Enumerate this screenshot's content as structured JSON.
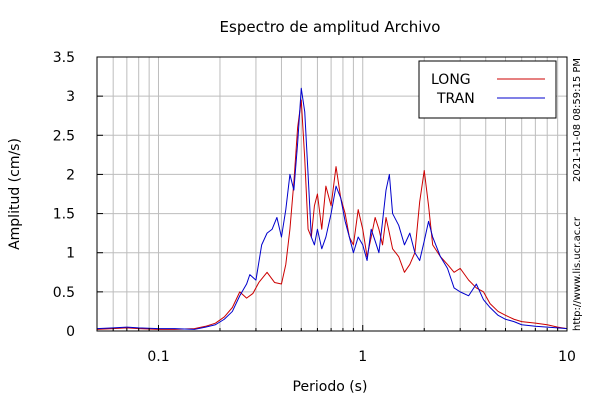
{
  "chart_data": {
    "type": "line",
    "title": "Espectro de amplitud Archivo",
    "xlabel": "Periodo (s)",
    "ylabel": "Amplitud (cm/s)",
    "x_scale": "log",
    "xlim": [
      0.05,
      10
    ],
    "ylim": [
      0,
      3.5
    ],
    "x_ticks": [
      {
        "value": 0.1,
        "label": "0.1"
      },
      {
        "value": 1,
        "label": "1"
      },
      {
        "value": 10,
        "label": "10"
      }
    ],
    "y_ticks": [
      {
        "value": 0,
        "label": "0"
      },
      {
        "value": 0.5,
        "label": "0.5"
      },
      {
        "value": 1,
        "label": "1"
      },
      {
        "value": 1.5,
        "label": "1.5"
      },
      {
        "value": 2,
        "label": "2"
      },
      {
        "value": 2.5,
        "label": "2.5"
      },
      {
        "value": 3,
        "label": "3"
      },
      {
        "value": 3.5,
        "label": "3.5"
      }
    ],
    "grid": true,
    "legend_position": "top-right",
    "timestamp": "2021-11-08 08:59:15 PM",
    "url": "http://www.lis.ucr.ac.cr",
    "series": [
      {
        "name": "LONG",
        "color": "#cc0000",
        "points": [
          [
            0.05,
            0.02
          ],
          [
            0.06,
            0.03
          ],
          [
            0.07,
            0.04
          ],
          [
            0.08,
            0.03
          ],
          [
            0.1,
            0.02
          ],
          [
            0.12,
            0.02
          ],
          [
            0.15,
            0.03
          ],
          [
            0.17,
            0.06
          ],
          [
            0.19,
            0.1
          ],
          [
            0.21,
            0.18
          ],
          [
            0.23,
            0.3
          ],
          [
            0.25,
            0.5
          ],
          [
            0.27,
            0.42
          ],
          [
            0.29,
            0.48
          ],
          [
            0.31,
            0.62
          ],
          [
            0.34,
            0.75
          ],
          [
            0.37,
            0.62
          ],
          [
            0.4,
            0.6
          ],
          [
            0.42,
            0.85
          ],
          [
            0.44,
            1.3
          ],
          [
            0.46,
            1.9
          ],
          [
            0.48,
            2.6
          ],
          [
            0.5,
            2.95
          ],
          [
            0.52,
            2.2
          ],
          [
            0.54,
            1.3
          ],
          [
            0.56,
            1.2
          ],
          [
            0.58,
            1.6
          ],
          [
            0.6,
            1.75
          ],
          [
            0.63,
            1.3
          ],
          [
            0.66,
            1.85
          ],
          [
            0.7,
            1.6
          ],
          [
            0.74,
            2.1
          ],
          [
            0.78,
            1.7
          ],
          [
            0.82,
            1.5
          ],
          [
            0.86,
            1.2
          ],
          [
            0.9,
            1.1
          ],
          [
            0.95,
            1.55
          ],
          [
            1.0,
            1.3
          ],
          [
            1.05,
            0.95
          ],
          [
            1.1,
            1.2
          ],
          [
            1.15,
            1.45
          ],
          [
            1.2,
            1.3
          ],
          [
            1.25,
            1.1
          ],
          [
            1.3,
            1.45
          ],
          [
            1.35,
            1.25
          ],
          [
            1.4,
            1.05
          ],
          [
            1.5,
            0.95
          ],
          [
            1.6,
            0.75
          ],
          [
            1.7,
            0.85
          ],
          [
            1.8,
            1.0
          ],
          [
            1.9,
            1.65
          ],
          [
            2.0,
            2.05
          ],
          [
            2.1,
            1.6
          ],
          [
            2.2,
            1.1
          ],
          [
            2.4,
            0.95
          ],
          [
            2.6,
            0.85
          ],
          [
            2.8,
            0.75
          ],
          [
            3.0,
            0.8
          ],
          [
            3.3,
            0.65
          ],
          [
            3.6,
            0.55
          ],
          [
            3.9,
            0.5
          ],
          [
            4.2,
            0.35
          ],
          [
            4.6,
            0.25
          ],
          [
            5.0,
            0.2
          ],
          [
            5.5,
            0.15
          ],
          [
            6.0,
            0.12
          ],
          [
            7.0,
            0.1
          ],
          [
            8.0,
            0.08
          ],
          [
            9.0,
            0.05
          ],
          [
            10.0,
            0.03
          ]
        ]
      },
      {
        "name": "TRAN",
        "color": "#0000cc",
        "points": [
          [
            0.05,
            0.03
          ],
          [
            0.06,
            0.04
          ],
          [
            0.07,
            0.05
          ],
          [
            0.08,
            0.04
          ],
          [
            0.1,
            0.03
          ],
          [
            0.12,
            0.03
          ],
          [
            0.15,
            0.02
          ],
          [
            0.17,
            0.05
          ],
          [
            0.19,
            0.08
          ],
          [
            0.21,
            0.15
          ],
          [
            0.23,
            0.25
          ],
          [
            0.25,
            0.45
          ],
          [
            0.27,
            0.6
          ],
          [
            0.28,
            0.72
          ],
          [
            0.3,
            0.65
          ],
          [
            0.32,
            1.1
          ],
          [
            0.34,
            1.25
          ],
          [
            0.36,
            1.3
          ],
          [
            0.38,
            1.45
          ],
          [
            0.4,
            1.2
          ],
          [
            0.42,
            1.55
          ],
          [
            0.44,
            2.0
          ],
          [
            0.46,
            1.8
          ],
          [
            0.48,
            2.4
          ],
          [
            0.5,
            3.1
          ],
          [
            0.52,
            2.8
          ],
          [
            0.54,
            2.0
          ],
          [
            0.56,
            1.2
          ],
          [
            0.58,
            1.1
          ],
          [
            0.6,
            1.3
          ],
          [
            0.63,
            1.05
          ],
          [
            0.66,
            1.2
          ],
          [
            0.7,
            1.5
          ],
          [
            0.74,
            1.85
          ],
          [
            0.78,
            1.7
          ],
          [
            0.82,
            1.4
          ],
          [
            0.86,
            1.2
          ],
          [
            0.9,
            1.0
          ],
          [
            0.95,
            1.2
          ],
          [
            1.0,
            1.1
          ],
          [
            1.05,
            0.9
          ],
          [
            1.1,
            1.3
          ],
          [
            1.15,
            1.15
          ],
          [
            1.2,
            1.0
          ],
          [
            1.25,
            1.4
          ],
          [
            1.3,
            1.8
          ],
          [
            1.35,
            2.0
          ],
          [
            1.4,
            1.5
          ],
          [
            1.5,
            1.35
          ],
          [
            1.6,
            1.1
          ],
          [
            1.7,
            1.25
          ],
          [
            1.8,
            1.0
          ],
          [
            1.9,
            0.9
          ],
          [
            2.0,
            1.15
          ],
          [
            2.1,
            1.4
          ],
          [
            2.2,
            1.2
          ],
          [
            2.4,
            0.95
          ],
          [
            2.6,
            0.8
          ],
          [
            2.8,
            0.55
          ],
          [
            3.0,
            0.5
          ],
          [
            3.3,
            0.45
          ],
          [
            3.6,
            0.6
          ],
          [
            3.9,
            0.4
          ],
          [
            4.2,
            0.3
          ],
          [
            4.6,
            0.2
          ],
          [
            5.0,
            0.15
          ],
          [
            5.5,
            0.12
          ],
          [
            6.0,
            0.08
          ],
          [
            7.0,
            0.06
          ],
          [
            8.0,
            0.05
          ],
          [
            9.0,
            0.04
          ],
          [
            10.0,
            0.03
          ]
        ]
      }
    ]
  }
}
